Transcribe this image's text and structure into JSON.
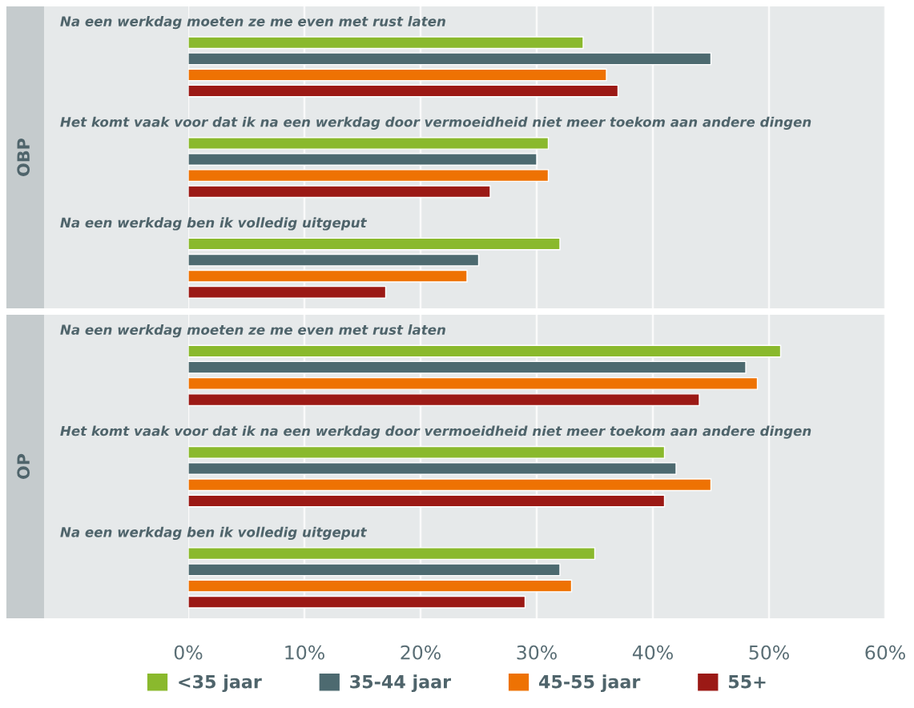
{
  "chart_data": [
    {
      "type": "bar",
      "orientation": "horizontal",
      "ylabel": "OBP",
      "categories": [
        "Na een werkdag moeten ze me even met rust laten",
        "Het komt vaak voor dat ik na een werkdag door vermoeidheid niet meer toekom aan andere dingen",
        "Na een werkdag ben ik volledig uitgeput"
      ],
      "series": [
        {
          "color": "#8ab92d",
          "values": [
            34,
            31,
            32
          ]
        },
        {
          "color": "#4d6a70",
          "values": [
            45,
            30,
            25
          ]
        },
        {
          "color": "#ee7203",
          "values": [
            36,
            31,
            24
          ]
        },
        {
          "color": "#9b1915",
          "values": [
            37,
            26,
            17
          ]
        }
      ],
      "xlim": [
        0,
        60
      ],
      "xticks": [
        0,
        10,
        20,
        30,
        40,
        50,
        60
      ],
      "grid": "x",
      "tick_labels": "y"
    },
    {
      "type": "bar",
      "orientation": "horizontal",
      "ylabel": "OP",
      "categories": [
        "Na een werkdag moeten ze me even met rust laten",
        "Het komt vaak voor dat ik na een werkdag door vermoeidheid niet meer toekom aan andere dingen",
        "Na een werkdag ben ik volledig uitgeput"
      ],
      "series": [
        {
          "name": "<35 jaar",
          "color": "#8ab92d",
          "values": [
            51,
            41,
            35
          ]
        },
        {
          "name": "35-44 jaar",
          "color": "#4d6a70",
          "values": [
            48,
            42,
            32
          ]
        },
        {
          "name": "45-55 jaar",
          "color": "#ee7203",
          "values": [
            49,
            45,
            33
          ]
        },
        {
          "name": "55+",
          "color": "#9b1915",
          "values": [
            44,
            41,
            29
          ]
        }
      ],
      "xlim": [
        0,
        60
      ],
      "xticks": [
        {
          "value": 0,
          "label": "0%"
        },
        {
          "value": 10,
          "label": "10%"
        },
        {
          "value": 20,
          "label": "20%"
        },
        {
          "value": 30,
          "label": "30%"
        },
        {
          "value": 40,
          "label": "40%"
        },
        {
          "value": 50,
          "label": "50%"
        },
        {
          "value": 60,
          "label": "60%"
        }
      ],
      "grid": "x",
      "legend": "bottom"
    }
  ]
}
